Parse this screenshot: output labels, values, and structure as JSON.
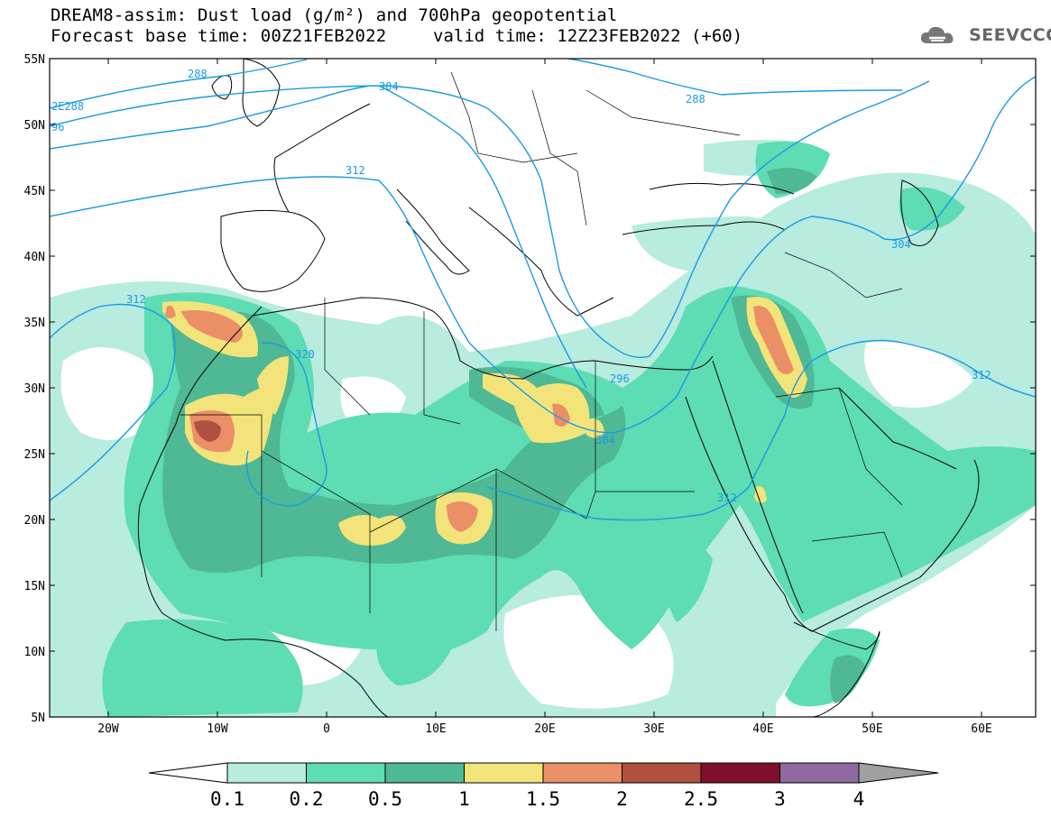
{
  "title": {
    "line1": "DREAM8-assim: Dust load (g/m²) and 700hPa geopotential",
    "line2_base": "Forecast base time: 00Z21FEB2022",
    "line2_valid": "valid time: 12Z23FEB2022 (+60)"
  },
  "logo": {
    "text": "SEEVCCC",
    "icon": "cloud-logo-icon"
  },
  "axes": {
    "lon_labels": [
      "20W",
      "10W",
      "0",
      "10E",
      "20E",
      "30E",
      "40E",
      "50E",
      "60E"
    ],
    "lat_labels": [
      "55N",
      "50N",
      "45N",
      "40N",
      "35N",
      "30N",
      "25N",
      "20N",
      "15N",
      "10N",
      "5N"
    ]
  },
  "contour_labels": [
    "288",
    "2E288",
    "96",
    "304",
    "288",
    "312",
    "304",
    "312",
    "320",
    "296",
    "304",
    "312",
    "312"
  ],
  "colorbar": {
    "ticks": [
      "0.1",
      "0.2",
      "0.5",
      "1",
      "1.5",
      "2",
      "2.5",
      "3",
      "4"
    ],
    "colors": [
      "#ffffff",
      "#b7ecdf",
      "#5edcb3",
      "#4fb894",
      "#f2e47a",
      "#ea8f66",
      "#b05040",
      "#7f0f2a",
      "#8e6aa0",
      "#a0a0a0"
    ]
  }
}
